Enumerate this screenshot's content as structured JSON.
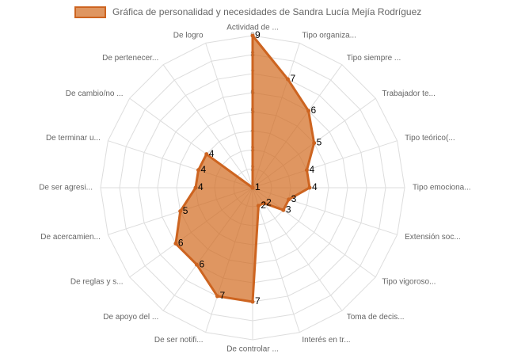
{
  "chart_data": {
    "type": "radar",
    "series": [
      {
        "name": "Gráfica de personalidad y necesidades de Sandra Lucía Mejía Rodríguez",
        "color": "#cd6420",
        "fill": "rgba(210,105,30,0.7)",
        "values": [
          9,
          7,
          6,
          5,
          4,
          4,
          3,
          3,
          2,
          2,
          7,
          7,
          6,
          6,
          5,
          4,
          4,
          4,
          1,
          1
        ]
      }
    ],
    "categories": [
      "Actividad de ...",
      "Tipo organiza...",
      "Tipo siempre ...",
      "Trabajador te...",
      "Tipo teórico(...",
      "Tipo emociona...",
      "Extensión soc...",
      "Tipo vigoroso...",
      "Toma de decis...",
      "Interés en tr...",
      "De controlar ...",
      "De ser notifi...",
      "De apoyo del ...",
      "De reglas y s...",
      "De acercamien...",
      "De ser agresi...",
      "De terminar u...",
      "De cambio/no ...",
      "De pertenecer...",
      "De logro"
    ],
    "ylim": [
      1,
      9
    ],
    "yticks": [
      1,
      2,
      3,
      4,
      5,
      6,
      7,
      8,
      9
    ],
    "grid": true
  }
}
